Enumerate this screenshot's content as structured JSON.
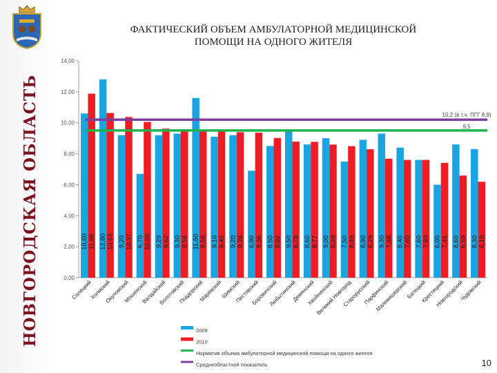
{
  "slide": {
    "title_line1": "ФАКТИЧЕСКИЙ ОБЪЕМ АМБУЛАТОРНОЙ МЕДИЦИНСКОЙ",
    "title_line2": "ПОМОЩИ НА ОДНОГО ЖИТЕЛЯ",
    "region_name": "НОВГОРОДСКАЯ ОБЛАСТЬ",
    "page_number": "10",
    "emblem": "novgorod-coat-of-arms-icon"
  },
  "colors": {
    "series_2009": "#1aa4e2",
    "series_2010": "#ee1c24",
    "norm_line": "#22b24c",
    "avg_line": "#7b3fa0",
    "region_text": "#7a1420"
  },
  "chart_data": {
    "type": "bar",
    "ylim": [
      0,
      14
    ],
    "yticks": [
      "0,00",
      "2,00",
      "4,00",
      "6,00",
      "8,00",
      "10,00",
      "12,00",
      "14,00"
    ],
    "grid": false,
    "legend_position": "bottom",
    "categories": [
      "Солецкий",
      "Холмский",
      "Окуловский",
      "Мошенской",
      "Валдайский",
      "Волотовский",
      "Поддорский",
      "Марёвский",
      "Шимский",
      "Пестовский",
      "Боровичский",
      "Любытинский",
      "Демянский",
      "Хвойнинский",
      "Великий Новгород",
      "Старорусский",
      "Парфинский",
      "Маловишерский",
      "Батецкий",
      "Крестецкий",
      "Новгородский",
      "Чудовский"
    ],
    "series": [
      {
        "name": "2009",
        "values": [
          10.6,
          12.8,
          9.2,
          6.7,
          9.2,
          9.3,
          11.6,
          9.1,
          9.2,
          6.9,
          8.5,
          9.5,
          8.6,
          9.0,
          7.5,
          8.9,
          9.3,
          8.4,
          7.6,
          6.0,
          8.6,
          8.3
        ],
        "labels": [
          "10,60",
          "12,80",
          "9,20",
          "6,70",
          "9,20",
          "9,30",
          "11,60",
          "9,10",
          "9,20",
          "6,90",
          "8,50",
          "9,50",
          "8,60",
          "9,00",
          "7,50",
          "8,90",
          "9,30",
          "8,40",
          "7,60",
          "6,00",
          "8,60",
          "8,30"
        ]
      },
      {
        "name": "2010",
        "values": [
          11.88,
          10.63,
          10.37,
          10.05,
          9.62,
          9.58,
          9.56,
          9.45,
          9.39,
          9.36,
          9.02,
          8.78,
          8.77,
          8.59,
          8.49,
          8.29,
          7.68,
          7.6,
          7.6,
          7.41,
          6.59,
          6.19
        ],
        "labels": [
          "11,88",
          "10,63",
          "10,37",
          "10,05",
          "9,62",
          "9,58",
          "9,56",
          "9,45",
          "9,39",
          "9,36",
          "9,02",
          "8,78",
          "8,77",
          "8,59",
          "8,49",
          "8,29",
          "7,68",
          "7,60",
          "7,60",
          "7,41",
          "6,59",
          "6,19"
        ]
      }
    ],
    "reference_lines": [
      {
        "name": "Норматив объема амбулаторной медицинской помощи на одного жителя",
        "value": 9.5,
        "label": "9,5"
      },
      {
        "name": "Среднеобластной показатель",
        "value": 10.2,
        "label": "10,2 (в т.ч. ПГГ 8,9)"
      }
    ]
  }
}
